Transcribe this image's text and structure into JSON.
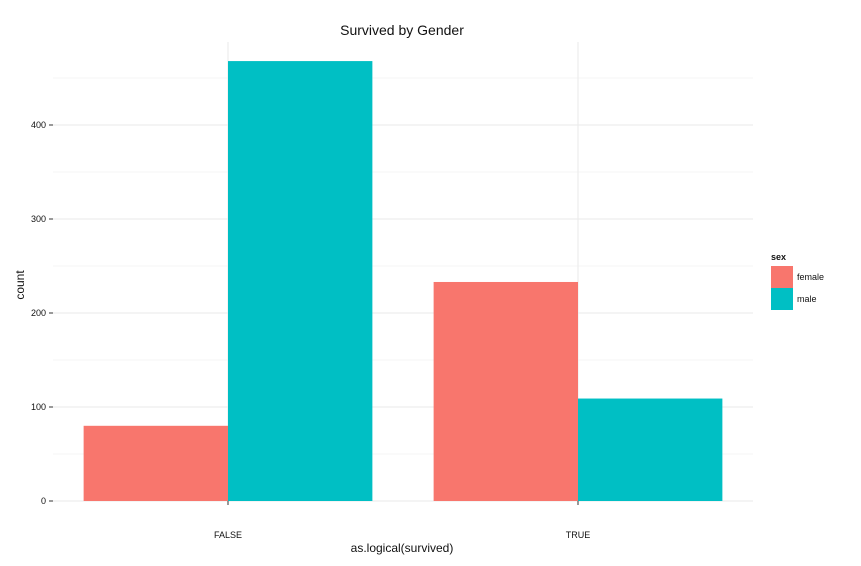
{
  "chart_data": {
    "type": "bar",
    "title": "Survived by Gender",
    "xlabel": "as.logical(survived)",
    "ylabel": "count",
    "categories": [
      "FALSE",
      "TRUE"
    ],
    "series": [
      {
        "name": "female",
        "values": [
          80,
          233
        ],
        "color": "#F8766D"
      },
      {
        "name": "male",
        "values": [
          468,
          109
        ],
        "color": "#00BFC4"
      }
    ],
    "ylim": [
      0,
      490
    ],
    "yticks": [
      0,
      100,
      200,
      300,
      400
    ],
    "grid": true,
    "legend": {
      "title": "sex",
      "position": "right"
    }
  }
}
